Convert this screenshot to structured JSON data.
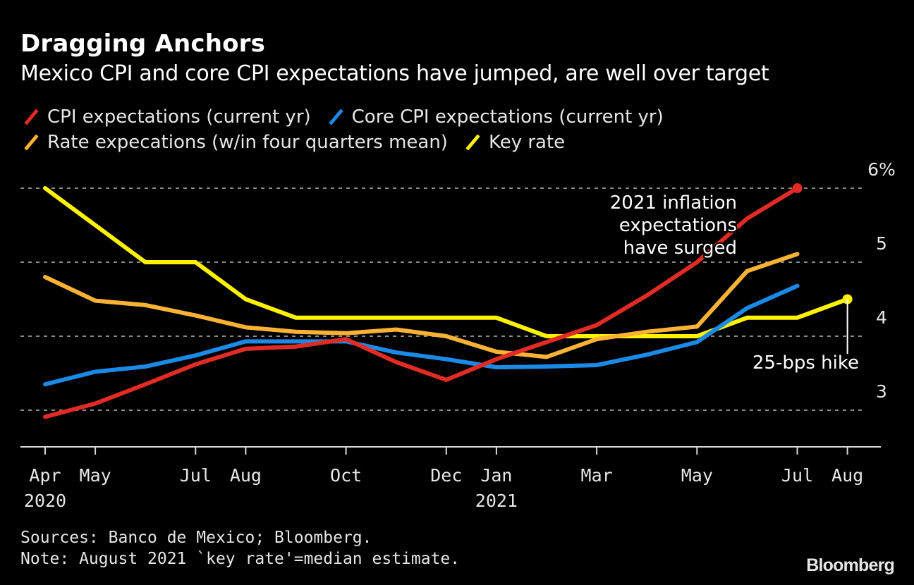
{
  "header": {
    "title": "Dragging Anchors",
    "subtitle": "Mexico CPI and core CPI expectations have jumped, are well over target"
  },
  "footer": {
    "sources": "Sources: Banco de Mexico; Bloomberg.",
    "note": "Note: August 2021 `key rate'=median estimate.",
    "logo": "Bloomberg"
  },
  "chart_data": {
    "type": "line",
    "title": "Dragging Anchors",
    "subtitle": "Mexico CPI and core CPI expectations have jumped, are well over target",
    "xlabel": "",
    "ylabel": "",
    "x": [
      "Apr 2020",
      "May 2020",
      "Jun 2020",
      "Jul 2020",
      "Aug 2020",
      "Sep 2020",
      "Oct 2020",
      "Nov 2020",
      "Dec 2020",
      "Jan 2021",
      "Feb 2021",
      "Mar 2021",
      "Apr 2021",
      "May 2021",
      "Jun 2021",
      "Jul 2021",
      "Aug 2021"
    ],
    "x_ticks": [
      {
        "index": 0,
        "label": "Apr",
        "sublabel": "2020"
      },
      {
        "index": 1,
        "label": "May",
        "sublabel": ""
      },
      {
        "index": 3,
        "label": "Jul",
        "sublabel": ""
      },
      {
        "index": 4,
        "label": "Aug",
        "sublabel": ""
      },
      {
        "index": 6,
        "label": "Oct",
        "sublabel": ""
      },
      {
        "index": 8,
        "label": "Dec",
        "sublabel": ""
      },
      {
        "index": 9,
        "label": "Jan",
        "sublabel": "2021"
      },
      {
        "index": 11,
        "label": "Mar",
        "sublabel": ""
      },
      {
        "index": 13,
        "label": "May",
        "sublabel": ""
      },
      {
        "index": 15,
        "label": "Jul",
        "sublabel": ""
      },
      {
        "index": 16,
        "label": "Aug",
        "sublabel": ""
      }
    ],
    "y_ticks": [
      {
        "value": 6,
        "label": "6%"
      },
      {
        "value": 5,
        "label": "5"
      },
      {
        "value": 4,
        "label": "4"
      },
      {
        "value": 3,
        "label": "3"
      }
    ],
    "ylim": [
      2.5,
      6.3
    ],
    "grid": true,
    "legend_position": "top-left",
    "series": [
      {
        "name": "CPI expectations (current yr)",
        "color": "#e12b25",
        "values": [
          2.91,
          3.09,
          3.35,
          3.62,
          3.83,
          3.86,
          3.96,
          3.65,
          3.41,
          3.69,
          3.92,
          4.15,
          4.55,
          5.0,
          5.59,
          6.0,
          null
        ],
        "end_marker": true
      },
      {
        "name": "Core CPI expectations (current yr)",
        "color": "#1a8ae6",
        "values": [
          3.35,
          3.52,
          3.59,
          3.74,
          3.93,
          3.93,
          3.93,
          3.78,
          3.69,
          3.58,
          3.59,
          3.61,
          3.75,
          3.92,
          4.38,
          4.68,
          null
        ],
        "end_marker": false
      },
      {
        "name": "Rate expecations (w/in four quarters mean)",
        "color": "#f9b233",
        "values": [
          4.8,
          4.48,
          4.42,
          4.28,
          4.12,
          4.06,
          4.04,
          4.09,
          4.0,
          3.79,
          3.72,
          3.96,
          4.06,
          4.13,
          4.88,
          5.11,
          null
        ],
        "end_marker": false
      },
      {
        "name": "Key rate",
        "color": "#fff200",
        "values": [
          6.0,
          5.5,
          5.0,
          5.0,
          4.5,
          4.25,
          4.25,
          4.25,
          4.25,
          4.25,
          4.0,
          4.0,
          4.0,
          4.0,
          4.25,
          4.25,
          4.5
        ],
        "end_marker": true
      }
    ],
    "annotations": [
      {
        "text_lines": [
          "2021 inflation",
          "expectations",
          "have surged"
        ],
        "series": "CPI expectations (current yr)"
      },
      {
        "text_lines": [
          "25-bps hike"
        ],
        "series": "Key rate",
        "x_index": 16
      }
    ]
  }
}
